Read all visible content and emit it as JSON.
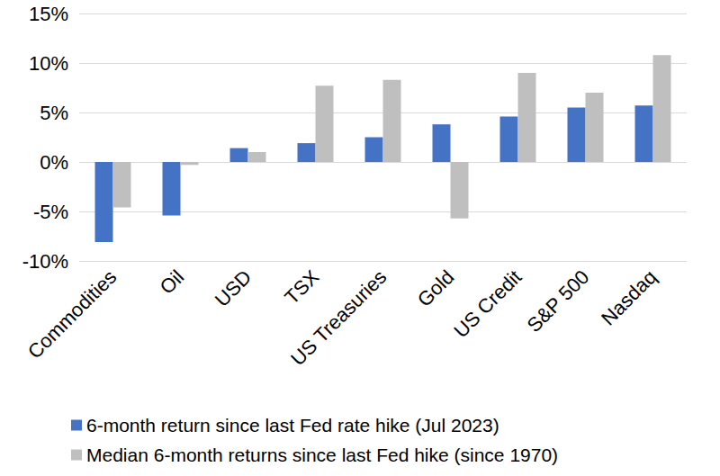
{
  "chart_data": {
    "type": "bar",
    "categories": [
      "Commodities",
      "Oil",
      "USD",
      "TSX",
      "US Treasuries",
      "Gold",
      "US Credit",
      "S&P 500",
      "Nasdaq"
    ],
    "series": [
      {
        "name": "6-month return since last Fed rate hike (Jul 2023)",
        "color": "#4472c4",
        "values": [
          -8.1,
          -5.4,
          1.4,
          1.9,
          2.5,
          3.8,
          4.6,
          5.5,
          5.7
        ]
      },
      {
        "name": "Median 6-month returns since last Fed hike (since 1970)",
        "color": "#bfbfbf",
        "values": [
          -4.6,
          -0.3,
          1.0,
          7.7,
          8.3,
          -5.7,
          9.0,
          7.0,
          10.8
        ]
      }
    ],
    "ylim": [
      -10,
      15
    ],
    "yticks": [
      {
        "value": -10,
        "label": "-10%"
      },
      {
        "value": -5,
        "label": "-5%"
      },
      {
        "value": 0,
        "label": "0%"
      },
      {
        "value": 5,
        "label": "5%"
      },
      {
        "value": 10,
        "label": "10%"
      },
      {
        "value": 15,
        "label": "15%"
      }
    ],
    "grid": true,
    "legend": "bottom"
  }
}
